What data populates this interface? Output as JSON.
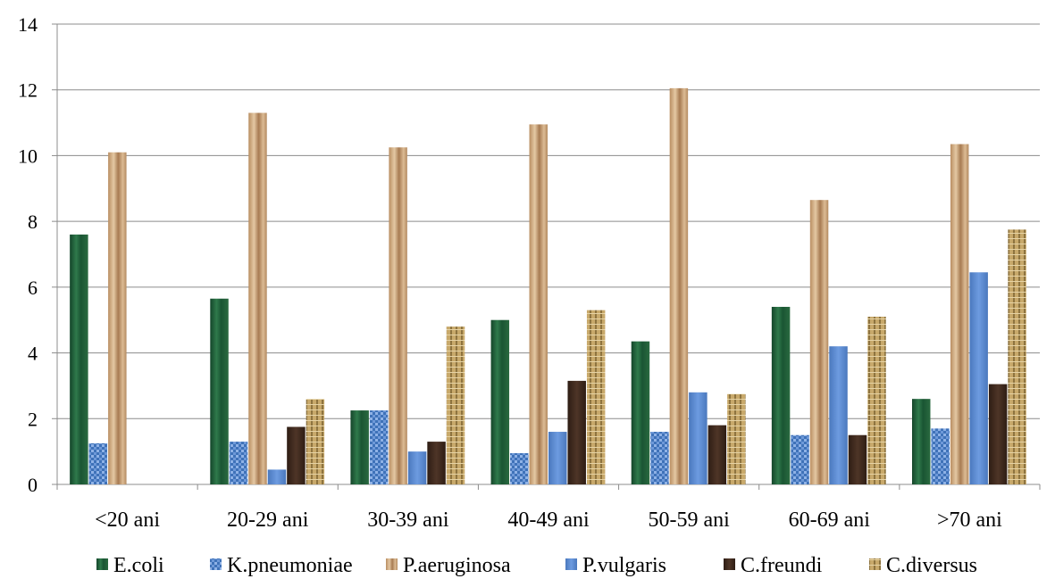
{
  "chart_data": {
    "type": "bar",
    "title": "",
    "xlabel": "",
    "ylabel": "",
    "ylim": [
      0,
      14
    ],
    "yticks": [
      "0",
      "2",
      "4",
      "6",
      "8",
      "10",
      "12",
      "14"
    ],
    "grid": true,
    "legend_position": "bottom",
    "categories": [
      "<20 ani",
      "20-29 ani",
      "30-39 ani",
      "40-49 ani",
      "50-59 ani",
      "60-69 ani",
      ">70 ani"
    ],
    "series": [
      {
        "name": "E.coli",
        "color": "#1e5a34",
        "values": [
          7.6,
          5.65,
          2.25,
          5.0,
          4.35,
          5.4,
          2.6
        ]
      },
      {
        "name": "K.pneumoniae",
        "color": "#4a7fc6",
        "values": [
          1.25,
          1.3,
          2.25,
          0.95,
          1.6,
          1.5,
          1.7
        ]
      },
      {
        "name": "P.aeruginosa",
        "color": "#d7b48d",
        "values": [
          10.1,
          11.3,
          10.25,
          10.95,
          12.05,
          8.65,
          10.35
        ]
      },
      {
        "name": "P.vulgaris",
        "color": "#5b8ad0",
        "values": [
          0,
          0.45,
          1.0,
          1.6,
          2.8,
          4.2,
          6.45
        ]
      },
      {
        "name": "C.freundi",
        "color": "#3e2a1f",
        "values": [
          0,
          1.75,
          1.3,
          3.15,
          1.8,
          1.5,
          3.05
        ]
      },
      {
        "name": "C.diversus",
        "color": "#c9ac70",
        "values": [
          0,
          2.6,
          4.8,
          5.3,
          2.75,
          5.1,
          7.75
        ]
      }
    ]
  }
}
